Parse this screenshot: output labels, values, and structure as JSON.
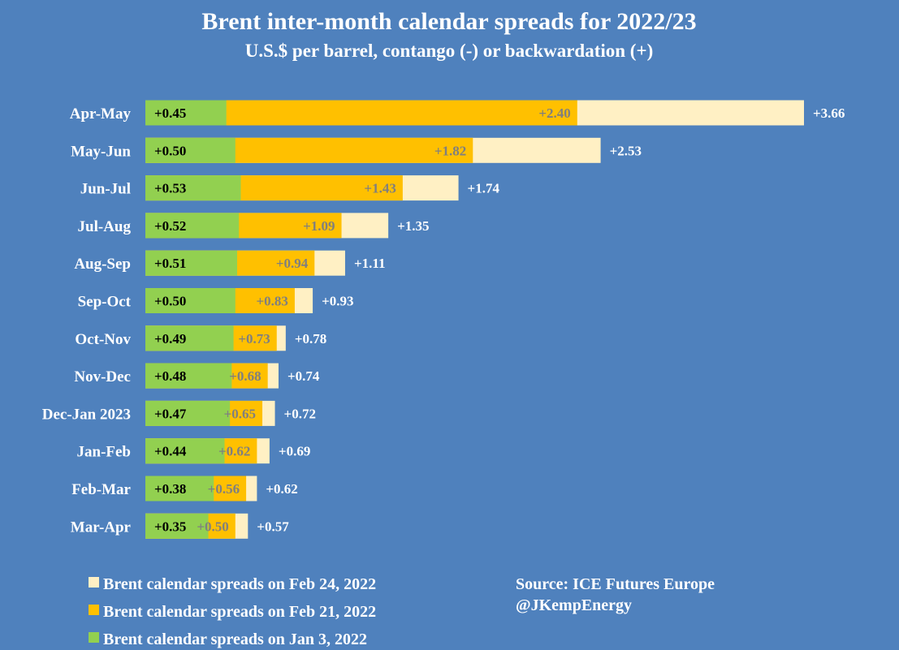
{
  "chart_data": {
    "type": "bar",
    "orientation": "horizontal",
    "overlapping": true,
    "title": "Brent inter-month calendar spreads for 2022/23",
    "subtitle": "U.S.$ per barrel, contango (-) or backwardation (+)",
    "categories": [
      "Apr-May",
      "May-Jun",
      "Jun-Jul",
      "Jul-Aug",
      "Aug-Sep",
      "Sep-Oct",
      "Oct-Nov",
      "Nov-Dec",
      "Dec-Jan 2023",
      "Jan-Feb",
      "Feb-Mar",
      "Mar-Apr"
    ],
    "series": [
      {
        "name": "Brent calendar spreads on Feb 24, 2022",
        "color": "#fff0c4",
        "label_color": "#ffffff",
        "values": [
          3.66,
          2.53,
          1.74,
          1.35,
          1.11,
          0.93,
          0.78,
          0.74,
          0.72,
          0.69,
          0.62,
          0.57
        ],
        "labels": [
          "+3.66",
          "+2.53",
          "+1.74",
          "+1.35",
          "+1.11",
          "+0.93",
          "+0.78",
          "+0.74",
          "+0.72",
          "+0.69",
          "+0.62",
          "+0.57"
        ]
      },
      {
        "name": "Brent calendar spreads on Feb 21, 2022",
        "color": "#ffc000",
        "label_color": "#7f7f7f",
        "values": [
          2.4,
          1.82,
          1.43,
          1.09,
          0.94,
          0.83,
          0.73,
          0.68,
          0.65,
          0.62,
          0.56,
          0.5
        ],
        "labels": [
          "+2.40",
          "+1.82",
          "+1.43",
          "+1.09",
          "+0.94",
          "+0.83",
          "+0.73",
          "+0.68",
          "+0.65",
          "+0.62",
          "+0.56",
          "+0.50"
        ]
      },
      {
        "name": "Brent calendar spreads on Jan 3, 2022",
        "color": "#92d050",
        "label_color": "#000000",
        "values": [
          0.45,
          0.5,
          0.53,
          0.52,
          0.51,
          0.5,
          0.49,
          0.48,
          0.47,
          0.44,
          0.38,
          0.35
        ],
        "labels": [
          "+0.45",
          "+0.50",
          "+0.53",
          "+0.52",
          "+0.51",
          "+0.50",
          "+0.49",
          "+0.48",
          "+0.47",
          "+0.44",
          "+0.38",
          "+0.35"
        ]
      }
    ],
    "xlim": [
      0,
      3.66
    ],
    "grid": false,
    "legend": "bottom-left",
    "annotations": [
      "Source: ICE Futures Europe",
      "@JKempEnergy"
    ]
  }
}
